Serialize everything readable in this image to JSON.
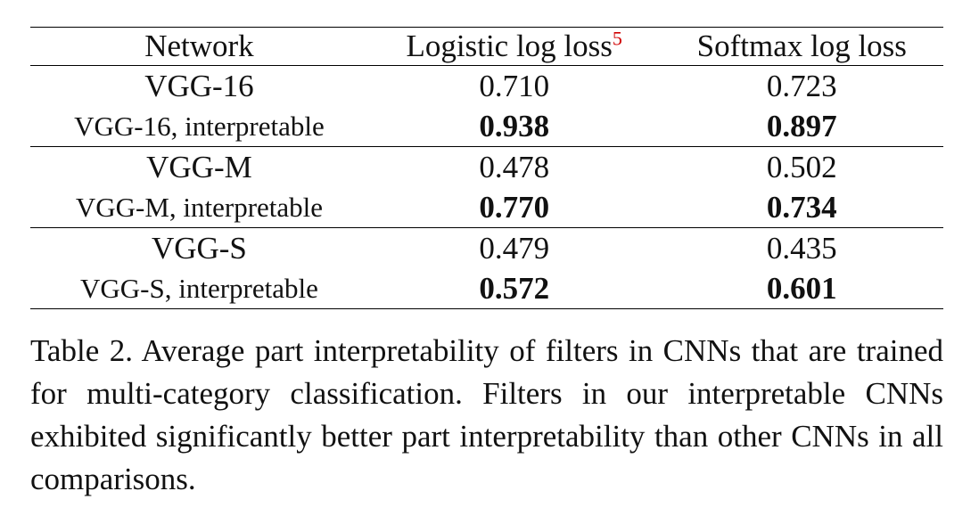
{
  "table": {
    "headers": {
      "network": "Network",
      "logistic": "Logistic log loss",
      "logistic_footnote": "5",
      "softmax": "Softmax log loss"
    },
    "groups": [
      {
        "base": {
          "network": "VGG-16",
          "logistic": "0.710",
          "softmax": "0.723"
        },
        "interpretable": {
          "network": "VGG-16, interpretable",
          "logistic": "0.938",
          "softmax": "0.897"
        }
      },
      {
        "base": {
          "network": "VGG-M",
          "logistic": "0.478",
          "softmax": "0.502"
        },
        "interpretable": {
          "network": "VGG-M, interpretable",
          "logistic": "0.770",
          "softmax": "0.734"
        }
      },
      {
        "base": {
          "network": "VGG-S",
          "logistic": "0.479",
          "softmax": "0.435"
        },
        "interpretable": {
          "network": "VGG-S, interpretable",
          "logistic": "0.572",
          "softmax": "0.601"
        }
      }
    ]
  },
  "caption": "Table 2. Average part interpretability of filters in CNNs that are trained for multi-category classification. Filters in our interpretable CNNs exhibited significantly better part interpretability than other CNNs in all comparisons."
}
